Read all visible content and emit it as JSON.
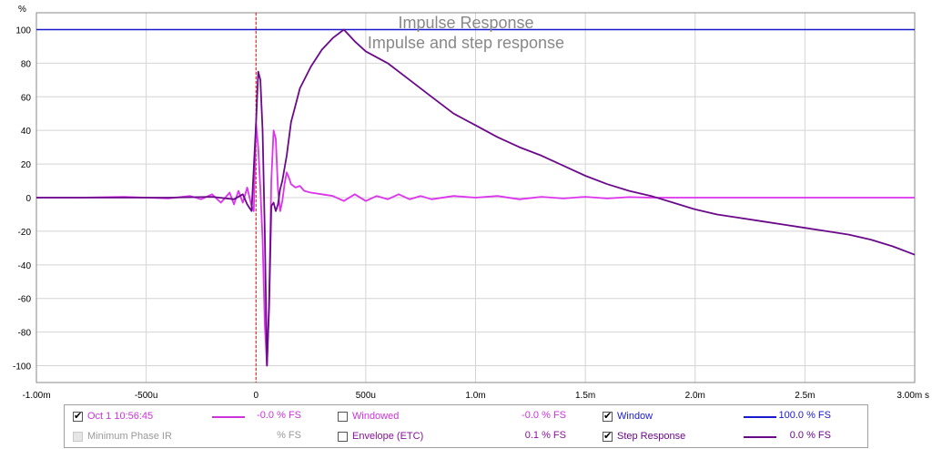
{
  "chart_data": {
    "type": "line",
    "title": "Impulse Response",
    "subtitle": "Impulse and step response",
    "ylabel": "%",
    "x_unit_label": "s",
    "xlim": [
      -0.001,
      0.003
    ],
    "ylim": [
      -110,
      110
    ],
    "grid": true,
    "x_ticks": [
      {
        "v": -0.001,
        "label": "-1.00m"
      },
      {
        "v": -0.0005,
        "label": "-500u"
      },
      {
        "v": 0,
        "label": "0"
      },
      {
        "v": 0.0005,
        "label": "500u"
      },
      {
        "v": 0.001,
        "label": "1.0m"
      },
      {
        "v": 0.0015,
        "label": "1.5m"
      },
      {
        "v": 0.002,
        "label": "2.0m"
      },
      {
        "v": 0.0025,
        "label": "2.5m"
      },
      {
        "v": 0.003,
        "label": "3.00m s"
      }
    ],
    "y_ticks": [
      100,
      80,
      60,
      40,
      20,
      0,
      -20,
      -40,
      -60,
      -80,
      -100
    ],
    "marker_x": 0,
    "series": [
      {
        "name": "Window",
        "color": "#1a1acc",
        "x": [
          -0.001,
          0.003
        ],
        "y": [
          100,
          100
        ]
      },
      {
        "name": "Oct 1 10:56:45",
        "color": "#dd33ee",
        "x": [
          -0.001,
          -0.0008,
          -0.0006,
          -0.0004,
          -0.0003,
          -0.00025,
          -0.0002,
          -0.00016,
          -0.00012,
          -0.0001,
          -8e-05,
          -6e-05,
          -4e-05,
          -2e-05,
          -1e-05,
          0,
          1e-05,
          2e-05,
          3e-05,
          4e-05,
          5e-05,
          6e-05,
          7e-05,
          8e-05,
          9e-05,
          0.0001,
          0.00011,
          0.00012,
          0.00013,
          0.00014,
          0.00015,
          0.00016,
          0.00018,
          0.0002,
          0.00022,
          0.00025,
          0.0003,
          0.00035,
          0.0004,
          0.00045,
          0.0005,
          0.00055,
          0.0006,
          0.00065,
          0.0007,
          0.00075,
          0.0008,
          0.0009,
          0.001,
          0.0011,
          0.0012,
          0.0013,
          0.0014,
          0.0015,
          0.0016,
          0.0017,
          0.0018,
          0.0019,
          0.002,
          0.0022,
          0.0024,
          0.0026,
          0.0028,
          0.003
        ],
        "y": [
          0,
          0,
          0.5,
          -0.5,
          1,
          -1,
          2,
          -3,
          3,
          -4,
          4,
          -3,
          6,
          -5,
          -8,
          44,
          30,
          5,
          -25,
          -75,
          -100,
          -60,
          10,
          40,
          35,
          5,
          -8,
          -2,
          8,
          15,
          12,
          8,
          6,
          7,
          4,
          3,
          2,
          1,
          -2,
          2,
          -2,
          1,
          -1,
          2,
          -1,
          1,
          -1,
          1,
          0,
          1,
          -1,
          0.5,
          -0.5,
          0.5,
          -0.5,
          0.3,
          0,
          0,
          0,
          0,
          0,
          0,
          0,
          0
        ]
      },
      {
        "name": "Step Response",
        "color": "#6a0a8a",
        "x": [
          -0.001,
          -0.0004,
          -0.0002,
          -0.0001,
          -6e-05,
          -4e-05,
          -2e-05,
          0,
          1e-05,
          2e-05,
          3e-05,
          4e-05,
          5e-05,
          6e-05,
          7e-05,
          8e-05,
          9e-05,
          0.0001,
          0.00011,
          0.00012,
          0.00014,
          0.00016,
          0.00018,
          0.0002,
          0.00025,
          0.0003,
          0.00035,
          0.0004,
          0.00045,
          0.0005,
          0.0006,
          0.0007,
          0.0008,
          0.0009,
          0.001,
          0.0011,
          0.0012,
          0.0013,
          0.0014,
          0.0015,
          0.0016,
          0.0017,
          0.0018,
          0.0019,
          0.002,
          0.0021,
          0.0022,
          0.0023,
          0.0024,
          0.0025,
          0.0026,
          0.0027,
          0.0028,
          0.0029,
          0.003
        ],
        "y": [
          0,
          0,
          0.5,
          -1,
          2,
          -4,
          -8,
          44,
          75,
          70,
          40,
          -20,
          -100,
          -65,
          -5,
          -3,
          -8,
          -4,
          5,
          10,
          25,
          45,
          55,
          65,
          78,
          88,
          95,
          100,
          93,
          87,
          80,
          70,
          60,
          50,
          43,
          36,
          30,
          25,
          19,
          13,
          8,
          4,
          1,
          -3,
          -7,
          -10,
          -12,
          -14,
          -16,
          -18,
          -20,
          -22,
          -25,
          -29,
          -34
        ]
      }
    ]
  },
  "legend": {
    "items": [
      {
        "label": "Oct 1 10:56:45",
        "value": "-0.0 % FS",
        "checked": true,
        "enabled": true,
        "color": "#cc33dd"
      },
      {
        "label": "Minimum Phase IR",
        "value": "% FS",
        "checked": false,
        "enabled": false,
        "color": "#999999"
      },
      {
        "label": "Windowed",
        "value": "-0.0 % FS",
        "checked": false,
        "enabled": true,
        "color": "#cc33dd"
      },
      {
        "label": "Envelope (ETC)",
        "value": "0.1 % FS",
        "checked": false,
        "enabled": true,
        "color": "#881199"
      },
      {
        "label": "Window",
        "value": "100.0 % FS",
        "checked": true,
        "enabled": true,
        "color": "#1a1acc"
      },
      {
        "label": "Step Response",
        "value": "0.0 % FS",
        "checked": true,
        "enabled": true,
        "color": "#6a0a8a"
      }
    ]
  }
}
